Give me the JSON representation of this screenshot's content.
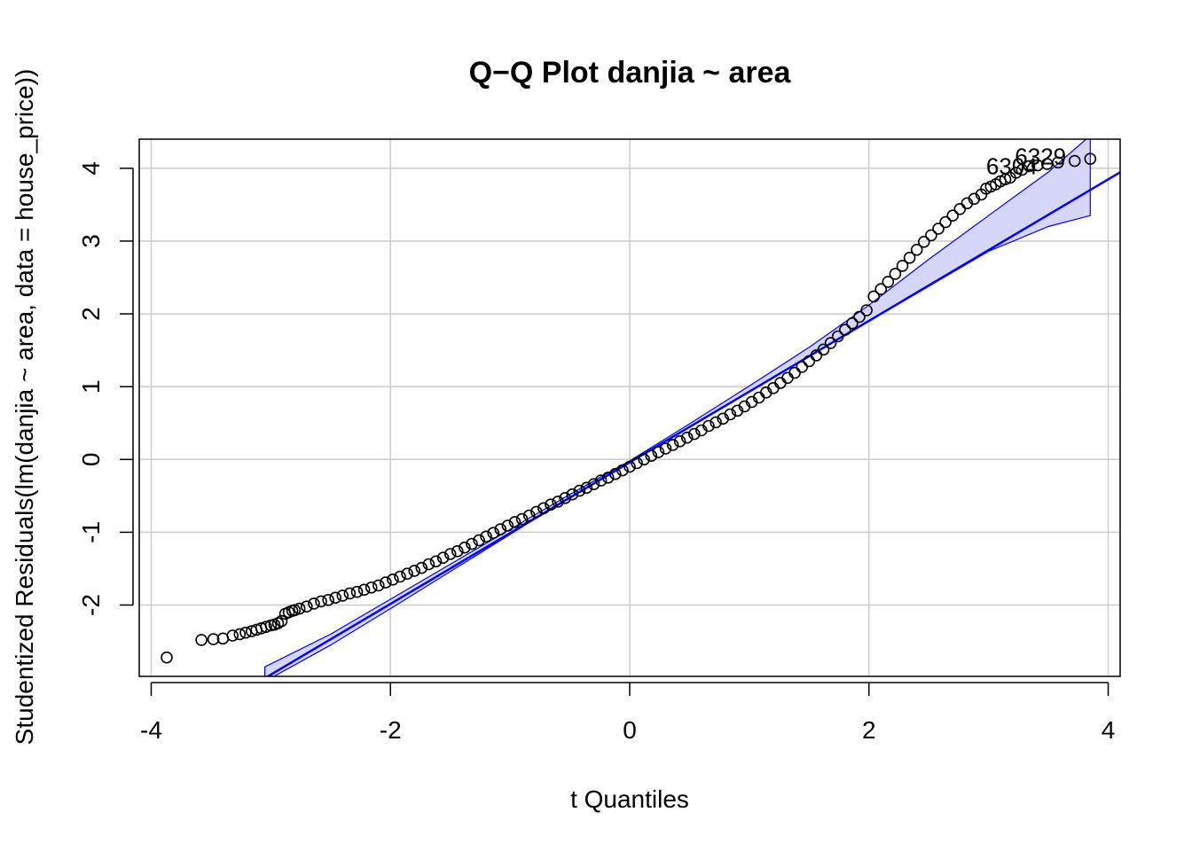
{
  "chart_data": {
    "type": "scatter",
    "title": "Q−Q Plot danjia ~ area",
    "xlabel": "t Quantiles",
    "ylabel": "Studentized Residuals(lm(danjia ~ area, data = house_price))",
    "xlim": [
      -4.1,
      4.1
    ],
    "ylim": [
      -2.98,
      4.4
    ],
    "x_ticks": [
      -4,
      -2,
      0,
      2,
      4
    ],
    "x_tick_labels": [
      "-4",
      "-2",
      "0",
      "2",
      "4"
    ],
    "y_ticks": [
      -2,
      -1,
      0,
      1,
      2,
      3,
      4
    ],
    "y_tick_labels": [
      "-2",
      "-1",
      "0",
      "1",
      "2",
      "3",
      "4"
    ],
    "grid": true,
    "reference_line": {
      "intercept": -0.04,
      "slope": 0.972
    },
    "confidence_band": {
      "x": [
        -3.05,
        -2.5,
        -2.0,
        -1.5,
        -1.0,
        -0.5,
        0.0,
        0.5,
        1.0,
        1.5,
        2.0,
        2.5,
        3.0,
        3.5,
        3.85
      ],
      "lower": [
        -3.05,
        -2.55,
        -2.05,
        -1.54,
        -1.03,
        -0.52,
        -0.04,
        0.45,
        0.94,
        1.42,
        1.9,
        2.38,
        2.86,
        3.2,
        3.35
      ],
      "upper": [
        -2.85,
        -2.4,
        -1.92,
        -1.44,
        -0.96,
        -0.48,
        -0.02,
        0.49,
        1.01,
        1.54,
        2.12,
        2.75,
        3.35,
        3.95,
        4.45
      ]
    },
    "series": [
      {
        "x": [
          -3.87,
          -3.58,
          -3.48,
          -3.4,
          -3.32,
          -3.26,
          -3.21,
          -3.16,
          -3.12,
          -3.08,
          -3.04,
          -3.0,
          -2.97,
          -2.94,
          -2.91,
          -2.88,
          -2.85,
          -2.82,
          -2.8,
          -2.76,
          -2.7,
          -2.64,
          -2.58,
          -2.52,
          -2.46,
          -2.4,
          -2.34,
          -2.28,
          -2.22,
          -2.16,
          -2.1,
          -2.04,
          -1.98,
          -1.92,
          -1.86,
          -1.8,
          -1.74,
          -1.68,
          -1.62,
          -1.56,
          -1.5,
          -1.44,
          -1.38,
          -1.32,
          -1.26,
          -1.2,
          -1.14,
          -1.08,
          -1.02,
          -0.96,
          -0.9,
          -0.84,
          -0.78,
          -0.72,
          -0.66,
          -0.6,
          -0.54,
          -0.48,
          -0.42,
          -0.36,
          -0.3,
          -0.24,
          -0.18,
          -0.12,
          -0.06,
          0.0,
          0.06,
          0.12,
          0.18,
          0.24,
          0.3,
          0.36,
          0.42,
          0.48,
          0.54,
          0.6,
          0.66,
          0.72,
          0.78,
          0.84,
          0.9,
          0.96,
          1.02,
          1.08,
          1.14,
          1.2,
          1.26,
          1.32,
          1.38,
          1.44,
          1.5,
          1.56,
          1.62,
          1.68,
          1.74,
          1.8,
          1.86,
          1.92,
          1.98,
          2.04,
          2.1,
          2.16,
          2.22,
          2.28,
          2.34,
          2.4,
          2.46,
          2.52,
          2.58,
          2.64,
          2.7,
          2.76,
          2.82,
          2.88,
          2.94,
          2.98,
          3.02,
          3.06,
          3.1,
          3.14,
          3.18,
          3.23,
          3.28,
          3.34,
          3.41,
          3.49,
          3.58,
          3.72,
          3.85
        ],
        "y": [
          -2.72,
          -2.48,
          -2.47,
          -2.46,
          -2.42,
          -2.4,
          -2.38,
          -2.36,
          -2.34,
          -2.32,
          -2.3,
          -2.28,
          -2.27,
          -2.25,
          -2.22,
          -2.12,
          -2.1,
          -2.08,
          -2.07,
          -2.05,
          -2.02,
          -1.98,
          -1.95,
          -1.93,
          -1.9,
          -1.87,
          -1.84,
          -1.82,
          -1.79,
          -1.76,
          -1.73,
          -1.69,
          -1.65,
          -1.61,
          -1.57,
          -1.53,
          -1.49,
          -1.44,
          -1.4,
          -1.35,
          -1.3,
          -1.26,
          -1.21,
          -1.16,
          -1.11,
          -1.06,
          -1.01,
          -0.96,
          -0.91,
          -0.86,
          -0.82,
          -0.77,
          -0.72,
          -0.67,
          -0.62,
          -0.58,
          -0.53,
          -0.48,
          -0.43,
          -0.39,
          -0.34,
          -0.29,
          -0.25,
          -0.2,
          -0.15,
          -0.1,
          -0.05,
          0.0,
          0.05,
          0.1,
          0.15,
          0.2,
          0.25,
          0.3,
          0.35,
          0.4,
          0.46,
          0.51,
          0.56,
          0.62,
          0.67,
          0.73,
          0.79,
          0.85,
          0.92,
          0.98,
          1.05,
          1.12,
          1.19,
          1.27,
          1.35,
          1.43,
          1.51,
          1.6,
          1.69,
          1.78,
          1.87,
          1.96,
          2.05,
          2.24,
          2.34,
          2.44,
          2.55,
          2.66,
          2.77,
          2.88,
          2.99,
          3.08,
          3.17,
          3.26,
          3.35,
          3.44,
          3.52,
          3.58,
          3.64,
          3.72,
          3.75,
          3.78,
          3.82,
          3.85,
          3.87,
          3.94,
          3.98,
          4.03,
          4.04,
          4.06,
          4.08,
          4.1,
          4.13
        ]
      }
    ],
    "point_labels": [
      "6304",
      "6329"
    ],
    "colors": {
      "line": "#0000ff",
      "band_fill": "#d6d6fb",
      "points": "#000000",
      "grid": "#cccccc"
    }
  }
}
